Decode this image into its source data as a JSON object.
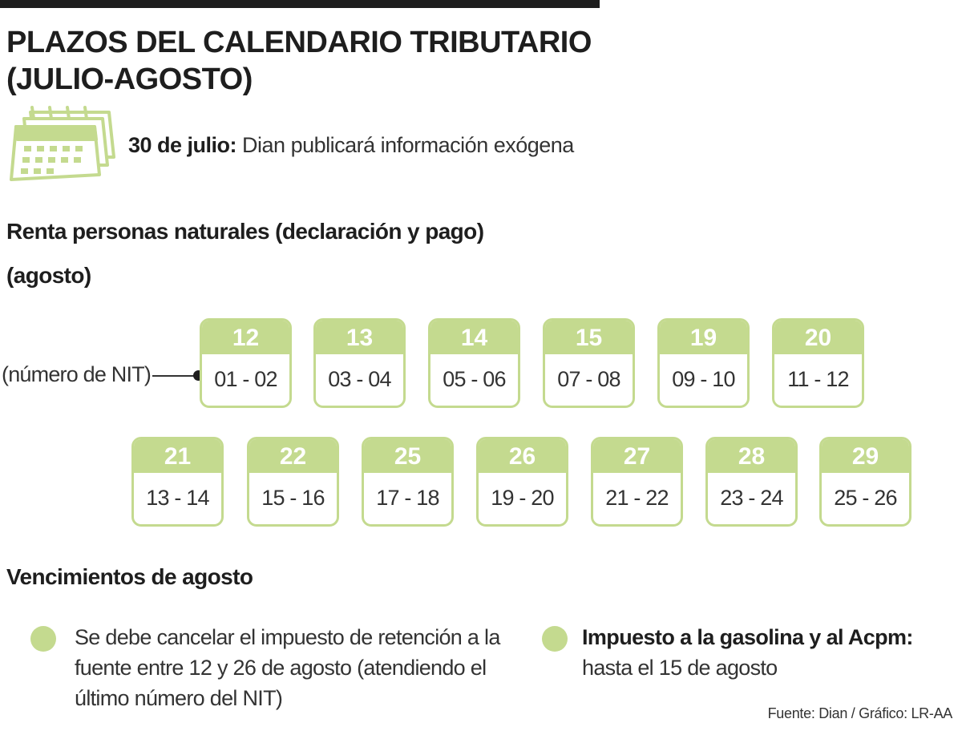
{
  "header": {
    "title_line1": "PLAZOS DEL CALENDARIO TRIBUTARIO",
    "title_line2": "(JULIO-AGOSTO)"
  },
  "highlight": {
    "icon": "calendar-icon",
    "date": "30 de julio:",
    "text": "Dian publicará información exógena"
  },
  "renta": {
    "heading": "Renta personas naturales (declaración y pago)",
    "month": "(agosto)",
    "nit_label": "(número de NIT)",
    "dates": [
      {
        "day": "12",
        "nit": "01 - 02"
      },
      {
        "day": "13",
        "nit": "03 - 04"
      },
      {
        "day": "14",
        "nit": "05 - 06"
      },
      {
        "day": "15",
        "nit": "07 - 08"
      },
      {
        "day": "19",
        "nit": "09 - 10"
      },
      {
        "day": "20",
        "nit": "11 - 12"
      },
      {
        "day": "21",
        "nit": "13 - 14"
      },
      {
        "day": "22",
        "nit": "15 - 16"
      },
      {
        "day": "25",
        "nit": "17 - 18"
      },
      {
        "day": "26",
        "nit": "19 - 20"
      },
      {
        "day": "27",
        "nit": "21 - 22"
      },
      {
        "day": "28",
        "nit": "23 - 24"
      },
      {
        "day": "29",
        "nit": "25 - 26"
      }
    ]
  },
  "vencimientos": {
    "heading": "Vencimientos de agosto",
    "items": [
      {
        "lines": [
          "Se debe cancelar el impuesto de retención a la",
          "fuente entre 12 y 26 de agosto (atendiendo el",
          "último número del NIT)"
        ]
      },
      {
        "title": "Impuesto a la gasolina y al Acpm:",
        "lines": [
          "hasta el 15 de agosto"
        ]
      }
    ]
  },
  "source": "Fuente: Dian / Gráfico: LR-AA",
  "colors": {
    "accent_green": "#c4da8f",
    "text_dark": "#1e1e1e"
  }
}
